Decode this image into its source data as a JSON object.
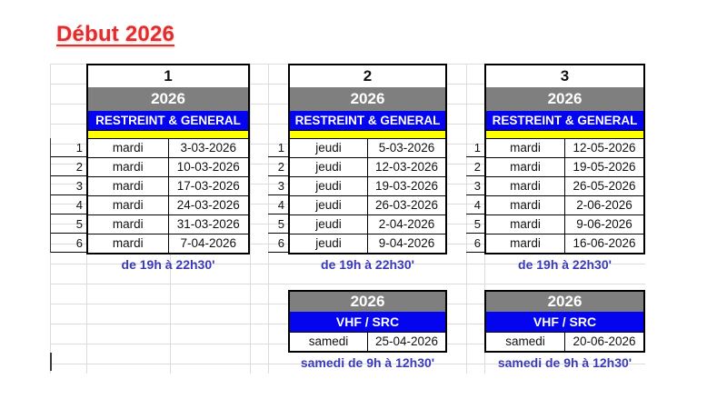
{
  "title": "Début 2026",
  "colors": {
    "title_red": "#e02e2e",
    "header_gray": "#7f7f7f",
    "header_blue": "#0404ee",
    "strip_yellow": "#ffff00",
    "footer_blue": "#3a3ab8"
  },
  "sections": [
    {
      "number": "1",
      "year": "2026",
      "course": "RESTREINT & GENERAL",
      "rows": [
        {
          "n": "1",
          "day": "mardi",
          "date": "3-03-2026"
        },
        {
          "n": "2",
          "day": "mardi",
          "date": "10-03-2026"
        },
        {
          "n": "3",
          "day": "mardi",
          "date": "17-03-2026"
        },
        {
          "n": "4",
          "day": "mardi",
          "date": "24-03-2026"
        },
        {
          "n": "5",
          "day": "mardi",
          "date": "31-03-2026"
        },
        {
          "n": "6",
          "day": "mardi",
          "date": "7-04-2026"
        }
      ],
      "footer": "de 19h à 22h30'"
    },
    {
      "number": "2",
      "year": "2026",
      "course": "RESTREINT & GENERAL",
      "rows": [
        {
          "n": "1",
          "day": "jeudi",
          "date": "5-03-2026"
        },
        {
          "n": "2",
          "day": "jeudi",
          "date": "12-03-2026"
        },
        {
          "n": "3",
          "day": "jeudi",
          "date": "19-03-2026"
        },
        {
          "n": "4",
          "day": "jeudi",
          "date": "26-03-2026"
        },
        {
          "n": "5",
          "day": "jeudi",
          "date": "2-04-2026"
        },
        {
          "n": "6",
          "day": "jeudi",
          "date": "9-04-2026"
        }
      ],
      "footer": "de 19h à 22h30'",
      "vhf": {
        "year": "2026",
        "course": "VHF / SRC",
        "day": "samedi",
        "date": "25-04-2026",
        "footer": "samedi de 9h à 12h30'"
      }
    },
    {
      "number": "3",
      "year": "2026",
      "course": "RESTREINT & GENERAL",
      "rows": [
        {
          "n": "1",
          "day": "mardi",
          "date": "12-05-2026"
        },
        {
          "n": "2",
          "day": "mardi",
          "date": "19-05-2026"
        },
        {
          "n": "3",
          "day": "mardi",
          "date": "26-05-2026"
        },
        {
          "n": "4",
          "day": "mardi",
          "date": "2-06-2026"
        },
        {
          "n": "5",
          "day": "mardi",
          "date": "9-06-2026"
        },
        {
          "n": "6",
          "day": "mardi",
          "date": "16-06-2026"
        }
      ],
      "footer": "de 19h à 22h30'",
      "vhf": {
        "year": "2026",
        "course": "VHF / SRC",
        "day": "samedi",
        "date": "20-06-2026",
        "footer": "samedi de 9h à 12h30'"
      }
    }
  ]
}
